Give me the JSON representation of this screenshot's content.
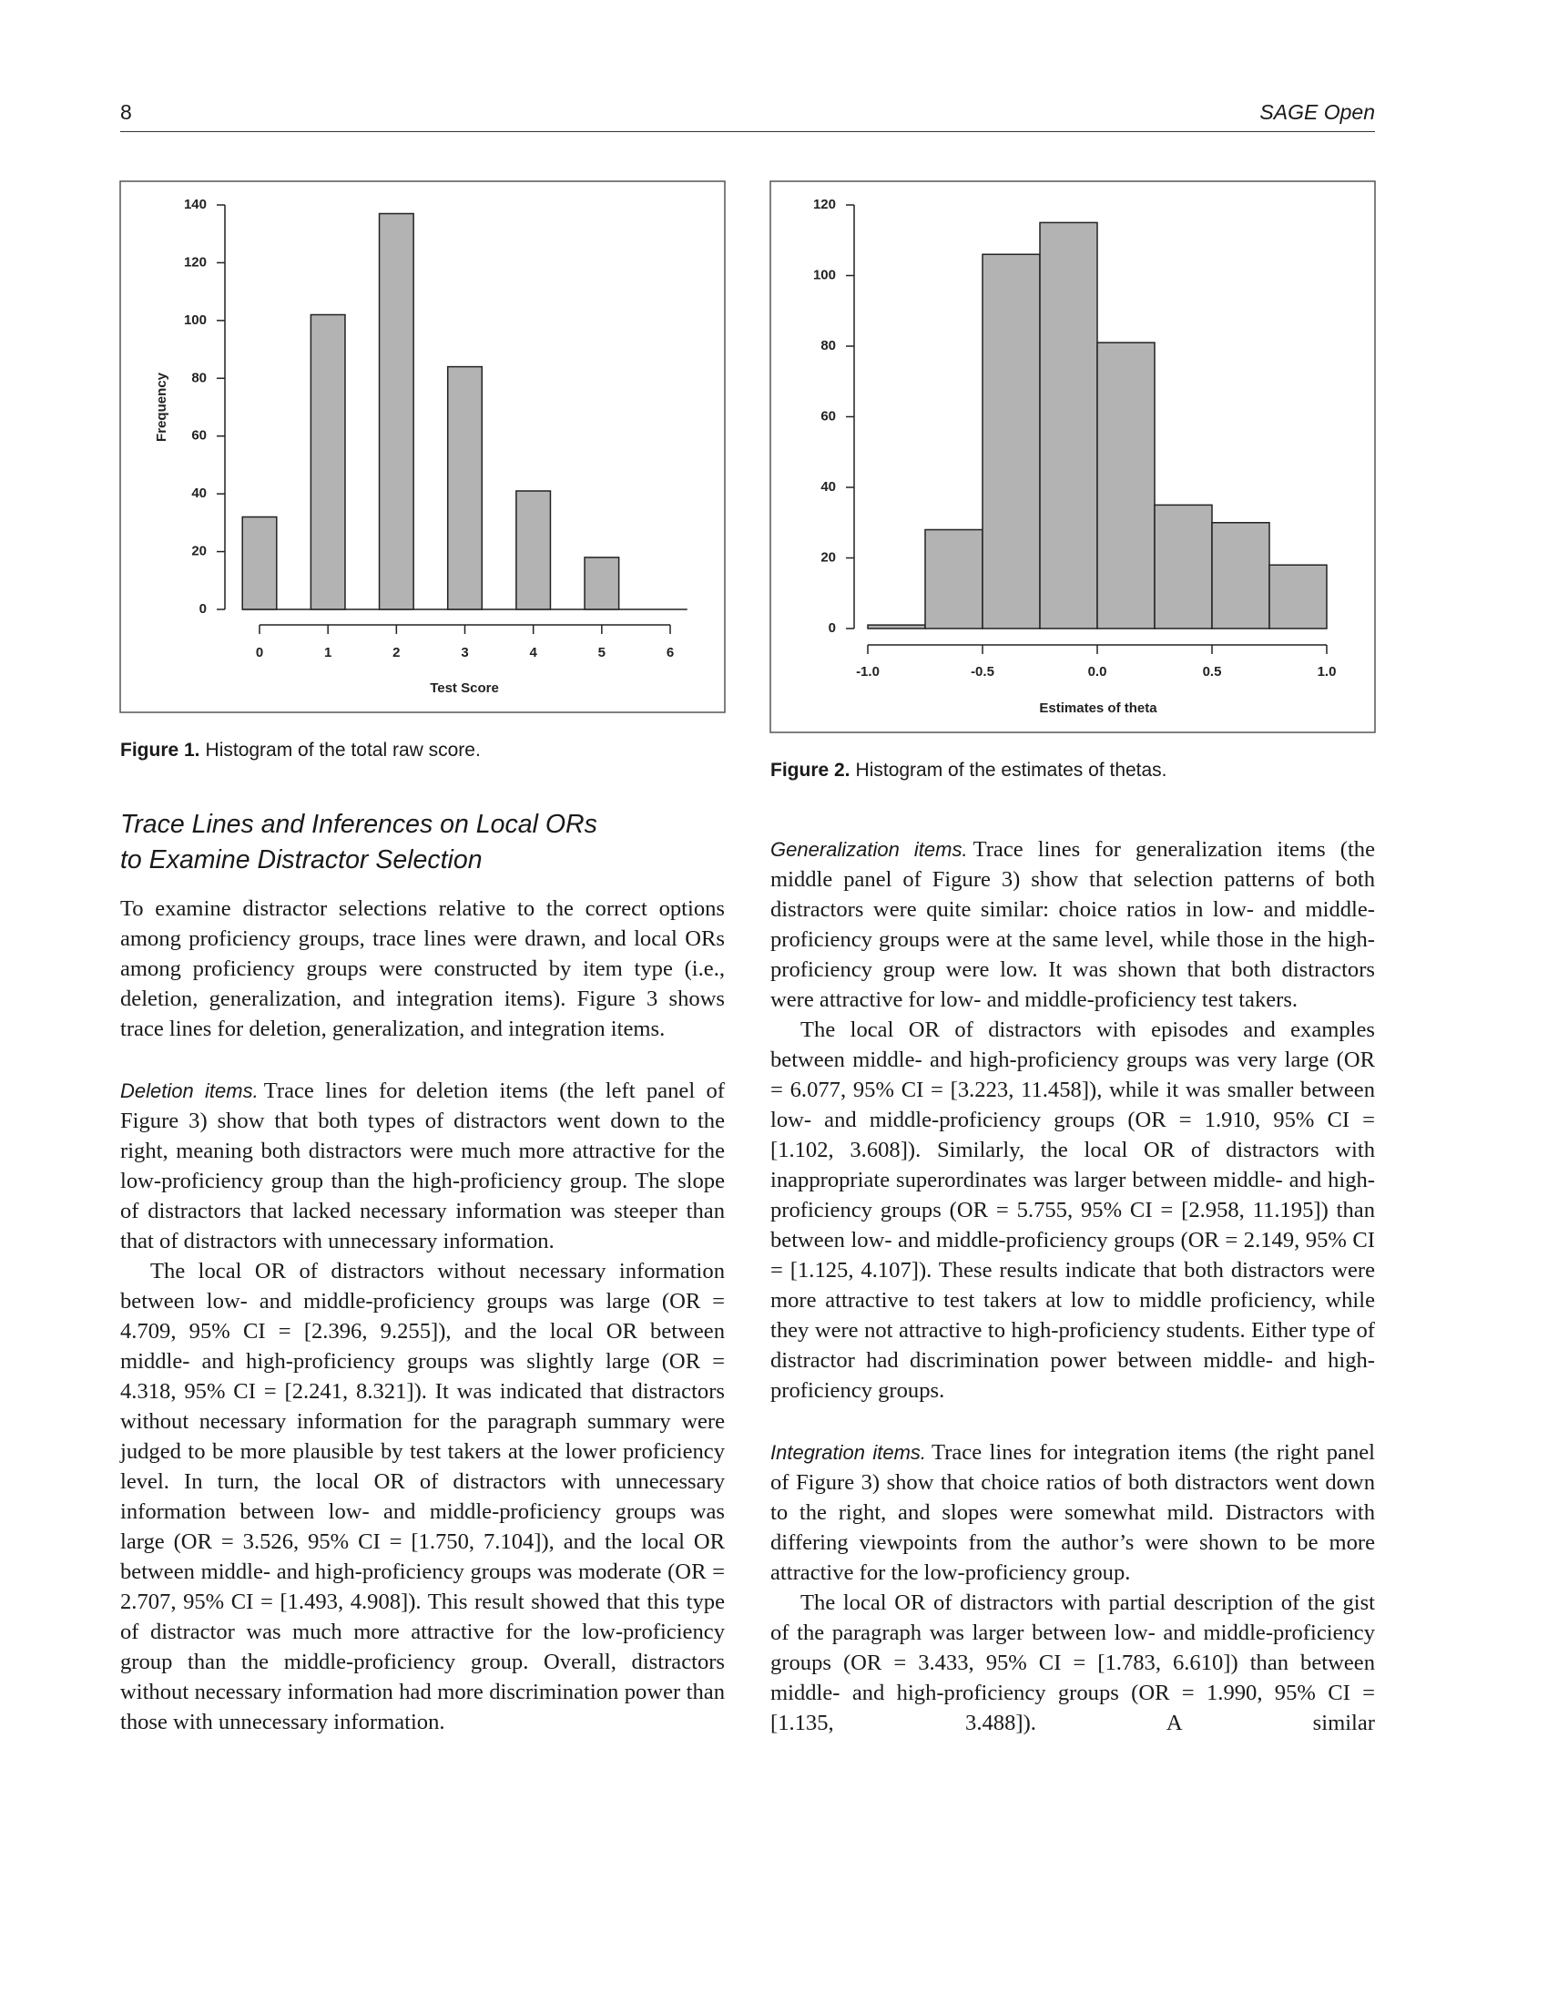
{
  "header": {
    "page_number": "8",
    "journal": "SAGE Open"
  },
  "chart_data": [
    {
      "type": "bar",
      "x": [
        0,
        1,
        2,
        3,
        4,
        5,
        6
      ],
      "values": [
        32,
        102,
        137,
        84,
        41,
        18,
        0
      ],
      "xlim": [
        0,
        6
      ],
      "xticks": [
        0,
        1,
        2,
        3,
        4,
        5,
        6
      ],
      "ylim": [
        0,
        140
      ],
      "yticks": [
        0,
        20,
        40,
        60,
        80,
        100,
        120,
        140
      ],
      "xlabel": "Test Score",
      "ylabel": "Frequency",
      "color": "#b3b3b3",
      "caption_label": "Figure 1.",
      "caption": "Histogram of the total raw score."
    },
    {
      "type": "histogram",
      "bins": [
        -1.0,
        -0.75,
        -0.5,
        -0.25,
        0.0,
        0.25,
        0.5,
        0.75,
        1.0
      ],
      "values": [
        1,
        28,
        106,
        115,
        81,
        35,
        30,
        18
      ],
      "xlim": [
        -1.0,
        1.0
      ],
      "xticks": [
        {
          "value": -1.0,
          "label": "-1.0"
        },
        -0.5,
        {
          "value": 0,
          "label": "0.0"
        },
        0.5,
        {
          "value": 1.0,
          "label": "1.0"
        }
      ],
      "ylim": [
        0,
        120
      ],
      "yticks": [
        0,
        20,
        40,
        60,
        80,
        100,
        120
      ],
      "xlabel": "Estimates of theta",
      "color": "#b3b3b3",
      "caption_label": "Figure 2.",
      "caption": "Histogram of the estimates of thetas."
    }
  ],
  "left_column": {
    "heading": [
      "Trace Lines and Inferences on Local ORs",
      "to Examine Distractor Selection"
    ],
    "paragraphs": [
      {
        "text": "To examine distractor selections relative to the correct options among proficiency groups, trace lines were drawn, and local ORs among proficiency groups were constructed by item type (i.e., deletion, generalization, and integration items). Figure 3 shows trace lines for deletion, generalization, and integration items."
      },
      {
        "run_in": "Deletion items.",
        "text": "Trace lines for deletion items (the left panel of Figure 3) show that both types of distractors went down to the right, meaning both distractors were much more attractive for the low-proficiency group than the high-proficiency group. The slope of distractors that lacked necessary information was steeper than that of distractors with unnecessary information."
      },
      {
        "text": "The local OR of distractors without necessary information between low- and middle-proficiency groups was large (OR = 4.709, 95% CI = [2.396, 9.255]), and the local OR between middle- and high-proficiency groups was slightly large (OR = 4.318, 95% CI = [2.241, 8.321]). It was indicated that distractors without necessary information for the paragraph summary were judged to be more plausible by test takers at the lower proficiency level. In turn, the local OR of distractors with unnecessary information between low- and middle-proficiency groups was large (OR = 3.526, 95% CI = [1.750, 7.104]), and the local OR between middle- and high-proficiency groups was moderate (OR = 2.707, 95% CI = [1.493, 4.908]). This result showed that this type of distractor was much more attractive for the low-proficiency group than the middle-proficiency group. Overall, distractors without necessary information had more discrimination power than those with unnecessary information."
      }
    ]
  },
  "right_column": {
    "paragraphs": [
      {
        "run_in": "Generalization items.",
        "text": "Trace lines for generalization items (the middle panel of Figure 3) show that selection patterns of both distractors were quite similar: choice ratios in low- and middle-proficiency groups were at the same level, while those in the high-proficiency group were low. It was shown that both distractors were attractive for low- and middle-proficiency test takers."
      },
      {
        "text": "The local OR of distractors with episodes and examples between middle- and high-proficiency groups was very large (OR = 6.077, 95% CI = [3.223, 11.458]), while it was smaller between low- and middle-proficiency groups (OR = 1.910, 95% CI = [1.102, 3.608]). Similarly, the local OR of distractors with inappropriate superordinates was larger between middle- and high-proficiency groups (OR = 5.755, 95% CI = [2.958, 11.195]) than between low- and middle-proficiency groups (OR = 2.149, 95% CI = [1.125, 4.107]). These results indicate that both distractors were more attractive to test takers at low to middle proficiency, while they were not attractive to high-proficiency students. Either type of distractor had discrimination power between middle- and high-proficiency groups."
      },
      {
        "run_in": "Integration items.",
        "text": "Trace lines for integration items (the right panel of Figure 3) show that choice ratios of both distractors went down to the right, and slopes were somewhat mild. Distractors with differing viewpoints from the author’s were shown to be more attractive for the low-proficiency group."
      },
      {
        "text": "The local OR of distractors with partial description of the gist of the paragraph was larger between low- and middle-proficiency groups (OR = 3.433, 95% CI = [1.783, 6.610]) than between middle- and high-proficiency groups (OR = 1.990, 95% CI = [1.135, 3.488]). A similar"
      }
    ]
  }
}
